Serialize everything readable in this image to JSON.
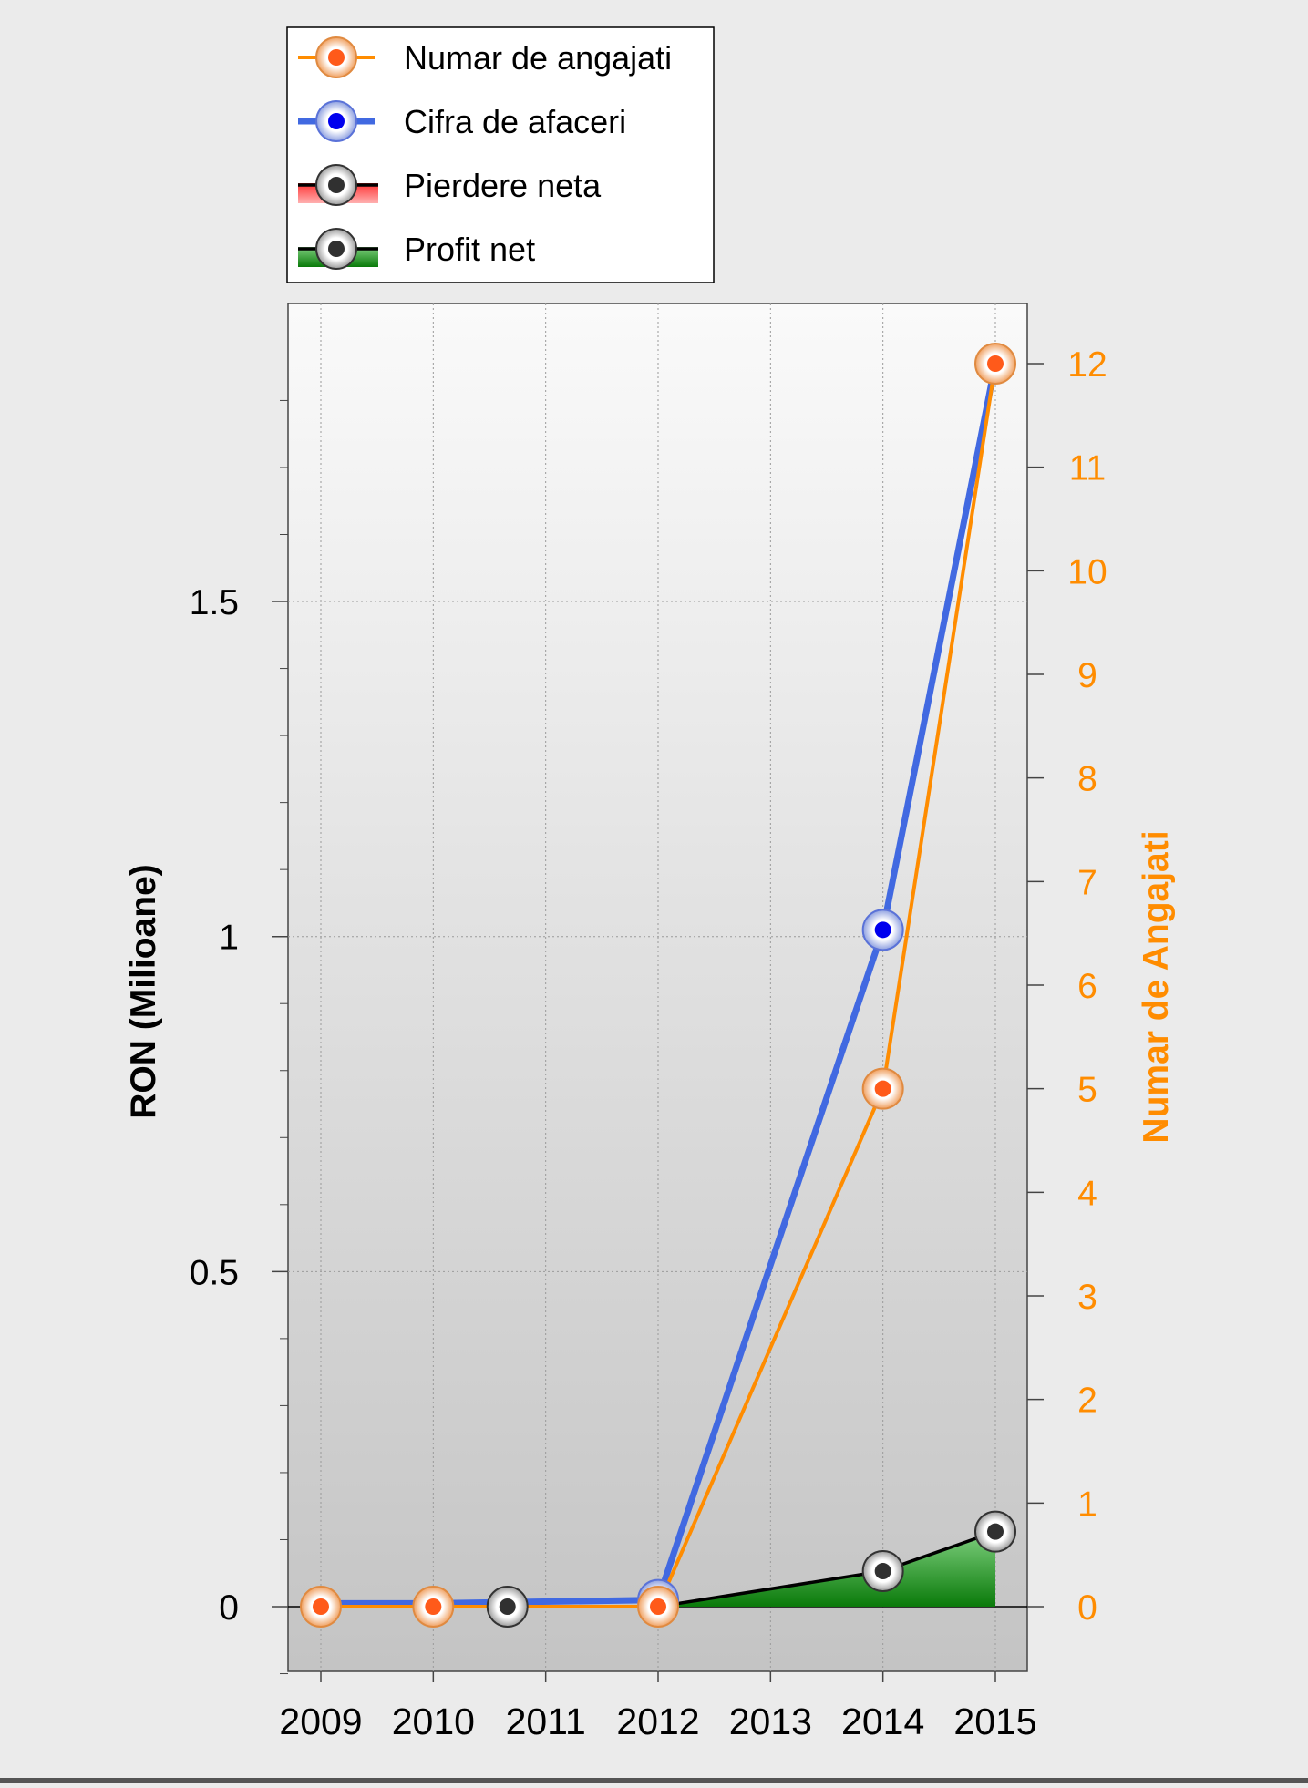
{
  "chart_data": {
    "type": "line",
    "xlabel": "",
    "ylabel": "RON (Milioane)",
    "y2label": "Numar de Angajati",
    "x_ticks": [
      "2009",
      "2010",
      "2011",
      "2012",
      "2013",
      "2014",
      "2015"
    ],
    "ylim": [
      -0.19,
      1.87
    ],
    "y_ticks": [
      "0",
      "0.5",
      "1",
      "1.5"
    ],
    "y2lim": [
      0,
      12
    ],
    "y2_ticks": [
      "0",
      "1",
      "2",
      "3",
      "4",
      "5",
      "6",
      "7",
      "8",
      "9",
      "10",
      "11",
      "12"
    ],
    "grid": true,
    "legend_position": "top",
    "legend": [
      {
        "key": "angajati",
        "label": "Numar de angajati"
      },
      {
        "key": "cifra",
        "label": "Cifra de afaceri"
      },
      {
        "key": "pierdere",
        "label": "Pierdere neta"
      },
      {
        "key": "profit",
        "label": "Profit net"
      }
    ],
    "series": [
      {
        "key": "angajati",
        "name": "Numar de angajati",
        "axis": "right",
        "color": "#ff8c00",
        "points": [
          {
            "x": 2009,
            "y": 0
          },
          {
            "x": 2010,
            "y": 0
          },
          {
            "x": 2012,
            "y": 0
          },
          {
            "x": 2014,
            "y": 5
          },
          {
            "x": 2015,
            "y": 12
          }
        ]
      },
      {
        "key": "cifra",
        "name": "Cifra de afaceri",
        "axis": "left",
        "color": "#4169e1",
        "points": [
          {
            "x": 2009,
            "y": 0.005
          },
          {
            "x": 2010,
            "y": 0.005
          },
          {
            "x": 2012,
            "y": 0.01
          },
          {
            "x": 2014,
            "y": 1.01
          },
          {
            "x": 2015,
            "y": 1.855
          }
        ]
      },
      {
        "key": "profit",
        "name": "Profit net",
        "axis": "left",
        "color": "#000000",
        "points": [
          {
            "x": 2009,
            "y": 0
          },
          {
            "x": 2010,
            "y": 0
          },
          {
            "x": 2010.66,
            "y": 0
          },
          {
            "x": 2012,
            "y": 0
          },
          {
            "x": 2014,
            "y": 0.053
          },
          {
            "x": 2015,
            "y": 0.112
          }
        ]
      }
    ],
    "colors": {
      "axis_right": "#ff8c00",
      "profit_fill": "#1f8a1f",
      "loss_fill": "#ff3b3b"
    }
  }
}
